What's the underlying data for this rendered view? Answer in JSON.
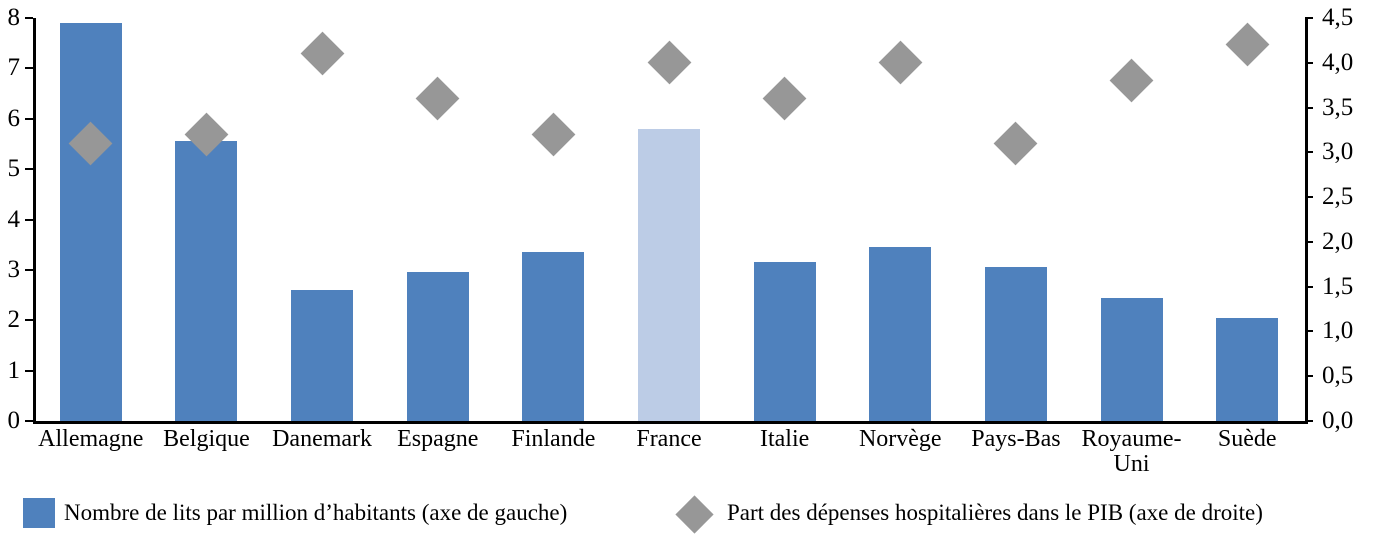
{
  "chart_data": {
    "type": "bar",
    "subtype": "dual-axis bar with diamond scatter markers",
    "categories": [
      "Allemagne",
      "Belgique",
      "Danemark",
      "Espagne",
      "Finlande",
      "France",
      "Italie",
      "Norvège",
      "Pays-Bas",
      "Royaume-Uni",
      "Suède"
    ],
    "series": [
      {
        "name": "Nombre de lits par million d’habitants (axe de gauche)",
        "type": "bar",
        "axis": "left",
        "values": [
          7.9,
          5.55,
          2.6,
          2.95,
          3.35,
          5.8,
          3.15,
          3.45,
          3.05,
          2.45,
          2.05
        ]
      },
      {
        "name": "Part des dépenses hospitalières  dans le PIB (axe de droite)",
        "type": "scatter",
        "marker": "diamond",
        "axis": "right",
        "values": [
          3.1,
          3.2,
          4.1,
          3.6,
          3.2,
          4.0,
          3.6,
          4.0,
          3.1,
          3.8,
          4.2
        ]
      }
    ],
    "left_axis": {
      "min": 0,
      "max": 8,
      "step": 1,
      "tick_labels": [
        "0",
        "1",
        "2",
        "3",
        "4",
        "5",
        "6",
        "7",
        "8"
      ]
    },
    "right_axis": {
      "min": 0,
      "max": 4.5,
      "step": 0.5,
      "tick_labels": [
        "0,0",
        "0,5",
        "1,0",
        "1,5",
        "2,0",
        "2,5",
        "3,0",
        "3,5",
        "4,0",
        "4,5"
      ]
    },
    "highlight_category": "France",
    "grid": "off",
    "legend_position": "bottom",
    "colors": {
      "bar": "#4F81BD",
      "bar_highlight": "#BCCCE6",
      "marker": "#979797",
      "axis": "#000000"
    },
    "legend": [
      {
        "label": "Nombre de lits par million d’habitants (axe de gauche)",
        "swatch": "square",
        "color": "#4F81BD"
      },
      {
        "label": "Part des dépenses hospitalières  dans le PIB (axe de droite)",
        "swatch": "diamond",
        "color": "#979797"
      }
    ]
  }
}
